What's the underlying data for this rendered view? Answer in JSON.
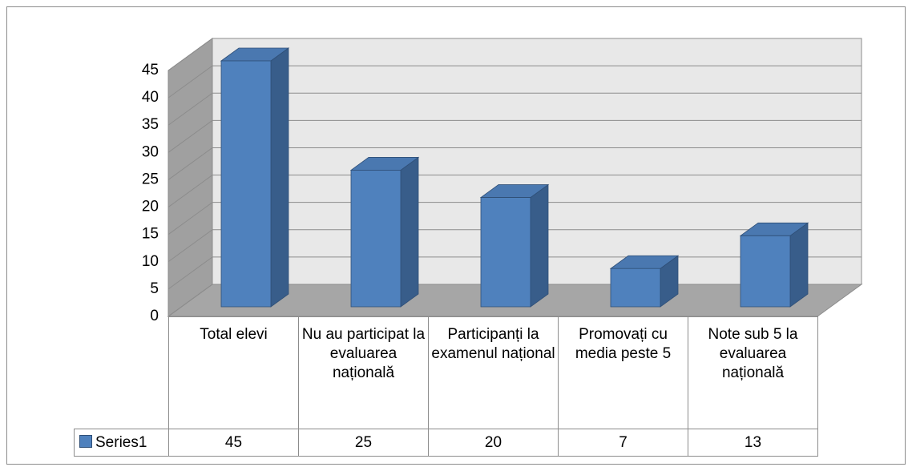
{
  "chart_data": {
    "type": "bar3d",
    "categories": [
      "Total elevi",
      "Nu au participat la evaluarea națională",
      "Participanți la examenul național",
      "Promovați cu media peste 5",
      "Note sub 5 la evaluarea națională"
    ],
    "series": [
      {
        "name": "Series1",
        "color": "#4f81bd",
        "values": [
          45,
          25,
          20,
          7,
          13
        ]
      }
    ],
    "ylim": [
      0,
      45
    ],
    "yticks": [
      0,
      5,
      10,
      15,
      20,
      25,
      30,
      35,
      40,
      45
    ],
    "grid": true,
    "data_table": true
  }
}
